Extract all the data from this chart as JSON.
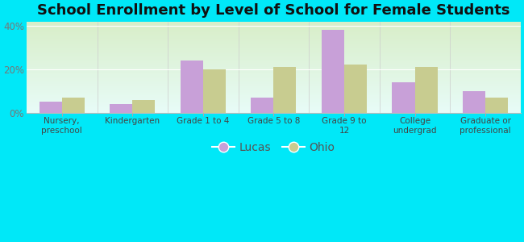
{
  "title": "School Enrollment by Level of School for Female Students",
  "categories": [
    "Nursery,\npreschool",
    "Kindergarten",
    "Grade 1 to 4",
    "Grade 5 to 8",
    "Grade 9 to\n12",
    "College\nundergrad",
    "Graduate or\nprofessional"
  ],
  "lucas_values": [
    5,
    4,
    24,
    7,
    38,
    14,
    10
  ],
  "ohio_values": [
    7,
    6,
    20,
    21,
    22,
    21,
    7
  ],
  "lucas_color": "#c8a0d8",
  "ohio_color": "#c8cc90",
  "background_outer": "#00e8f8",
  "ylim": [
    0,
    42
  ],
  "yticks": [
    0,
    20,
    40
  ],
  "ytick_labels": [
    "0%",
    "20%",
    "40%"
  ],
  "legend_labels": [
    "Lucas",
    "Ohio"
  ],
  "title_fontsize": 13,
  "bar_width": 0.32
}
